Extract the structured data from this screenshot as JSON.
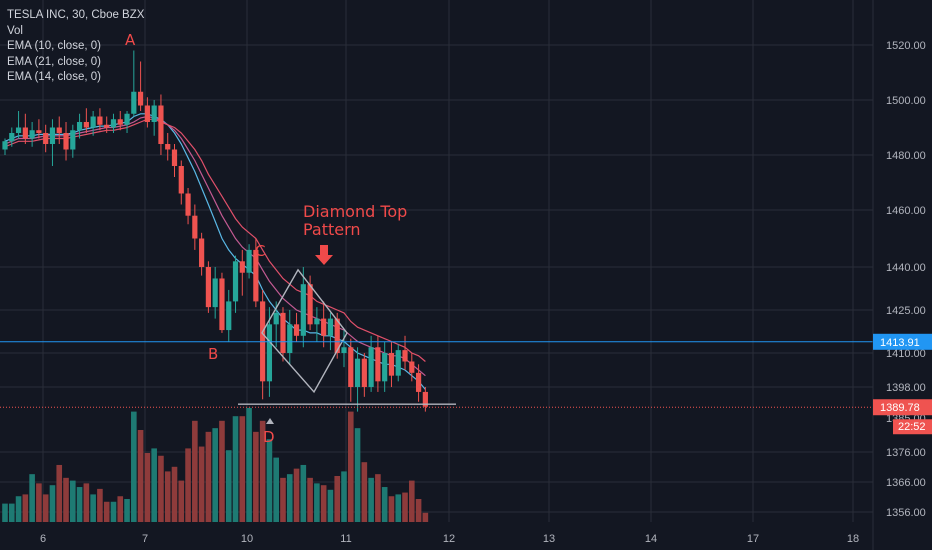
{
  "legend": {
    "symbol": "TESLA INC, 30, Cboe BZX",
    "vol": "Vol",
    "ema1": "EMA (10, close, 0)",
    "ema2": "EMA (21, close, 0)",
    "ema3": "EMA (14, close, 0)"
  },
  "colors": {
    "background": "#131722",
    "grid": "#2a2e39",
    "up": "#26a69a",
    "down": "#ef5350",
    "up_volume": "#1e7a73",
    "down_volume": "#8e3b3b",
    "ema_fast": "#5ab8e6",
    "ema_mid": "#e0506a",
    "ema_slow": "#c25a92",
    "annotation": "#f04a4a",
    "pattern": "#b2b5be",
    "last_price_line": "#ef5350",
    "level_line": "#2196f3"
  },
  "annotations": {
    "a": "A",
    "b": "B",
    "c": "C",
    "d": "D",
    "title_line1": "Diamond Top",
    "title_line2": "Pattern"
  },
  "badges": {
    "level": "1413.91",
    "last_price": "1389.78",
    "countdown": "22:52"
  },
  "chart_data": {
    "type": "candlestick",
    "y_ticks": [
      1520,
      1500,
      1480,
      1460,
      1440,
      1425,
      1410,
      1398,
      1376,
      1366,
      1356
    ],
    "y_ticks_partial": [
      "1385.00"
    ],
    "x_ticks": [
      "6",
      "7",
      "10",
      "11",
      "12",
      "13",
      "14",
      "17",
      "18"
    ],
    "level_price": 1413.91,
    "last_price": 1389.78,
    "diamond": {
      "top": 1439,
      "bottom": 1396,
      "left_price": 1417,
      "right_price": 1417
    },
    "neckline_price": 1391,
    "candles": [
      {
        "o": 1482,
        "h": 1486,
        "l": 1480,
        "c": 1485
      },
      {
        "o": 1485,
        "h": 1490,
        "l": 1483,
        "c": 1488
      },
      {
        "o": 1488,
        "h": 1496,
        "l": 1486,
        "c": 1490
      },
      {
        "o": 1490,
        "h": 1495,
        "l": 1484,
        "c": 1486
      },
      {
        "o": 1486,
        "h": 1492,
        "l": 1483,
        "c": 1489
      },
      {
        "o": 1489,
        "h": 1493,
        "l": 1486,
        "c": 1488
      },
      {
        "o": 1488,
        "h": 1491,
        "l": 1481,
        "c": 1484
      },
      {
        "o": 1484,
        "h": 1493,
        "l": 1476,
        "c": 1490
      },
      {
        "o": 1490,
        "h": 1494,
        "l": 1484,
        "c": 1488
      },
      {
        "o": 1488,
        "h": 1492,
        "l": 1478,
        "c": 1482
      },
      {
        "o": 1482,
        "h": 1491,
        "l": 1479,
        "c": 1489
      },
      {
        "o": 1489,
        "h": 1495,
        "l": 1486,
        "c": 1492
      },
      {
        "o": 1492,
        "h": 1497,
        "l": 1488,
        "c": 1490
      },
      {
        "o": 1490,
        "h": 1496,
        "l": 1487,
        "c": 1494
      },
      {
        "o": 1494,
        "h": 1497,
        "l": 1489,
        "c": 1491
      },
      {
        "o": 1491,
        "h": 1494,
        "l": 1488,
        "c": 1490
      },
      {
        "o": 1490,
        "h": 1495,
        "l": 1488,
        "c": 1493
      },
      {
        "o": 1493,
        "h": 1496,
        "l": 1489,
        "c": 1491
      },
      {
        "o": 1491,
        "h": 1496,
        "l": 1488,
        "c": 1495
      },
      {
        "o": 1495,
        "h": 1518,
        "l": 1494,
        "c": 1503
      },
      {
        "o": 1503,
        "h": 1514,
        "l": 1496,
        "c": 1498
      },
      {
        "o": 1498,
        "h": 1501,
        "l": 1490,
        "c": 1492
      },
      {
        "o": 1492,
        "h": 1500,
        "l": 1487,
        "c": 1498
      },
      {
        "o": 1498,
        "h": 1502,
        "l": 1480,
        "c": 1484
      },
      {
        "o": 1484,
        "h": 1488,
        "l": 1478,
        "c": 1482
      },
      {
        "o": 1482,
        "h": 1484,
        "l": 1472,
        "c": 1476
      },
      {
        "o": 1476,
        "h": 1478,
        "l": 1462,
        "c": 1466
      },
      {
        "o": 1466,
        "h": 1468,
        "l": 1455,
        "c": 1458
      },
      {
        "o": 1458,
        "h": 1462,
        "l": 1446,
        "c": 1450
      },
      {
        "o": 1450,
        "h": 1452,
        "l": 1437,
        "c": 1440
      },
      {
        "o": 1440,
        "h": 1442,
        "l": 1424,
        "c": 1426
      },
      {
        "o": 1426,
        "h": 1440,
        "l": 1422,
        "c": 1436
      },
      {
        "o": 1436,
        "h": 1438,
        "l": 1417,
        "c": 1418
      },
      {
        "o": 1418,
        "h": 1432,
        "l": 1414,
        "c": 1428
      },
      {
        "o": 1428,
        "h": 1444,
        "l": 1424,
        "c": 1442
      },
      {
        "o": 1442,
        "h": 1446,
        "l": 1430,
        "c": 1438
      },
      {
        "o": 1438,
        "h": 1448,
        "l": 1436,
        "c": 1446
      },
      {
        "o": 1446,
        "h": 1450,
        "l": 1426,
        "c": 1428
      },
      {
        "o": 1428,
        "h": 1432,
        "l": 1393,
        "c": 1400
      },
      {
        "o": 1400,
        "h": 1426,
        "l": 1394,
        "c": 1420
      },
      {
        "o": 1420,
        "h": 1428,
        "l": 1412,
        "c": 1424
      },
      {
        "o": 1424,
        "h": 1426,
        "l": 1407,
        "c": 1410
      },
      {
        "o": 1410,
        "h": 1425,
        "l": 1406,
        "c": 1420
      },
      {
        "o": 1420,
        "h": 1424,
        "l": 1414,
        "c": 1416
      },
      {
        "o": 1416,
        "h": 1440,
        "l": 1412,
        "c": 1434
      },
      {
        "o": 1434,
        "h": 1437,
        "l": 1418,
        "c": 1420
      },
      {
        "o": 1420,
        "h": 1426,
        "l": 1414,
        "c": 1422
      },
      {
        "o": 1422,
        "h": 1428,
        "l": 1412,
        "c": 1416
      },
      {
        "o": 1416,
        "h": 1424,
        "l": 1411,
        "c": 1422
      },
      {
        "o": 1422,
        "h": 1424,
        "l": 1408,
        "c": 1410
      },
      {
        "o": 1410,
        "h": 1418,
        "l": 1405,
        "c": 1412
      },
      {
        "o": 1412,
        "h": 1415,
        "l": 1392,
        "c": 1398
      },
      {
        "o": 1398,
        "h": 1412,
        "l": 1388,
        "c": 1408
      },
      {
        "o": 1408,
        "h": 1410,
        "l": 1394,
        "c": 1398
      },
      {
        "o": 1398,
        "h": 1416,
        "l": 1396,
        "c": 1412
      },
      {
        "o": 1412,
        "h": 1416,
        "l": 1396,
        "c": 1400
      },
      {
        "o": 1400,
        "h": 1414,
        "l": 1396,
        "c": 1410
      },
      {
        "o": 1410,
        "h": 1414,
        "l": 1398,
        "c": 1402
      },
      {
        "o": 1402,
        "h": 1413,
        "l": 1400,
        "c": 1411
      },
      {
        "o": 1411,
        "h": 1416,
        "l": 1404,
        "c": 1407
      },
      {
        "o": 1407,
        "h": 1410,
        "l": 1400,
        "c": 1403
      },
      {
        "o": 1403,
        "h": 1406,
        "l": 1392,
        "c": 1396
      },
      {
        "o": 1396,
        "h": 1398,
        "l": 1388,
        "c": 1390
      }
    ],
    "volumes": [
      20,
      20,
      28,
      30,
      52,
      42,
      30,
      40,
      62,
      48,
      45,
      38,
      42,
      30,
      36,
      22,
      22,
      28,
      25,
      120,
      100,
      75,
      80,
      72,
      55,
      60,
      45,
      80,
      110,
      82,
      98,
      102,
      110,
      78,
      115,
      115,
      124,
      98,
      110,
      90,
      70,
      48,
      52,
      58,
      62,
      48,
      42,
      40,
      35,
      50,
      55,
      120,
      102,
      65,
      48,
      52,
      38,
      28,
      30,
      32,
      45,
      25,
      10
    ],
    "ema_fast": [
      1485,
      1486,
      1487,
      1487,
      1487,
      1487.5,
      1487.5,
      1487.5,
      1487.5,
      1487.5,
      1488,
      1489,
      1489.5,
      1490,
      1490.5,
      1490.5,
      1491,
      1491.5,
      1492,
      1494,
      1495,
      1495,
      1494,
      1493,
      1491,
      1488,
      1484,
      1479,
      1474,
      1468,
      1462,
      1456,
      1450,
      1446,
      1443,
      1441,
      1439,
      1437,
      1432,
      1428,
      1425,
      1422,
      1420,
      1418,
      1418,
      1417,
      1417,
      1416,
      1416,
      1415,
      1414,
      1412,
      1410,
      1409,
      1408,
      1407,
      1406,
      1406,
      1405,
      1404,
      1402,
      1400,
      1397
    ],
    "ema_mid": [
      1483,
      1484,
      1485,
      1485,
      1485,
      1485.5,
      1486,
      1486,
      1486,
      1486,
      1486.5,
      1487,
      1487.5,
      1488,
      1488.5,
      1489,
      1489,
      1489.5,
      1490,
      1491,
      1492,
      1493,
      1493,
      1492,
      1491,
      1490,
      1488,
      1485,
      1482,
      1478,
      1473,
      1469,
      1465,
      1461,
      1457,
      1454,
      1452,
      1450,
      1446,
      1442,
      1439,
      1436,
      1434,
      1432,
      1431,
      1430,
      1428,
      1427,
      1426,
      1425,
      1424,
      1421,
      1419,
      1418,
      1417,
      1416,
      1415,
      1414,
      1413,
      1412,
      1410,
      1409,
      1407
    ],
    "ema_slow": [
      1484,
      1485,
      1486,
      1486,
      1486,
      1486.5,
      1487,
      1487,
      1487,
      1487,
      1487.5,
      1488,
      1488.5,
      1489,
      1489.5,
      1490,
      1490,
      1490.5,
      1491,
      1492,
      1493.5,
      1494,
      1493.5,
      1492.5,
      1491,
      1489,
      1486,
      1482,
      1478,
      1473,
      1468,
      1463,
      1458,
      1454,
      1450,
      1447,
      1445,
      1443,
      1439,
      1435,
      1432,
      1429,
      1427,
      1425,
      1424,
      1423,
      1422,
      1421,
      1420,
      1419,
      1418,
      1416,
      1414,
      1413,
      1412,
      1411,
      1410,
      1409,
      1409,
      1408,
      1406,
      1404,
      1402
    ]
  }
}
